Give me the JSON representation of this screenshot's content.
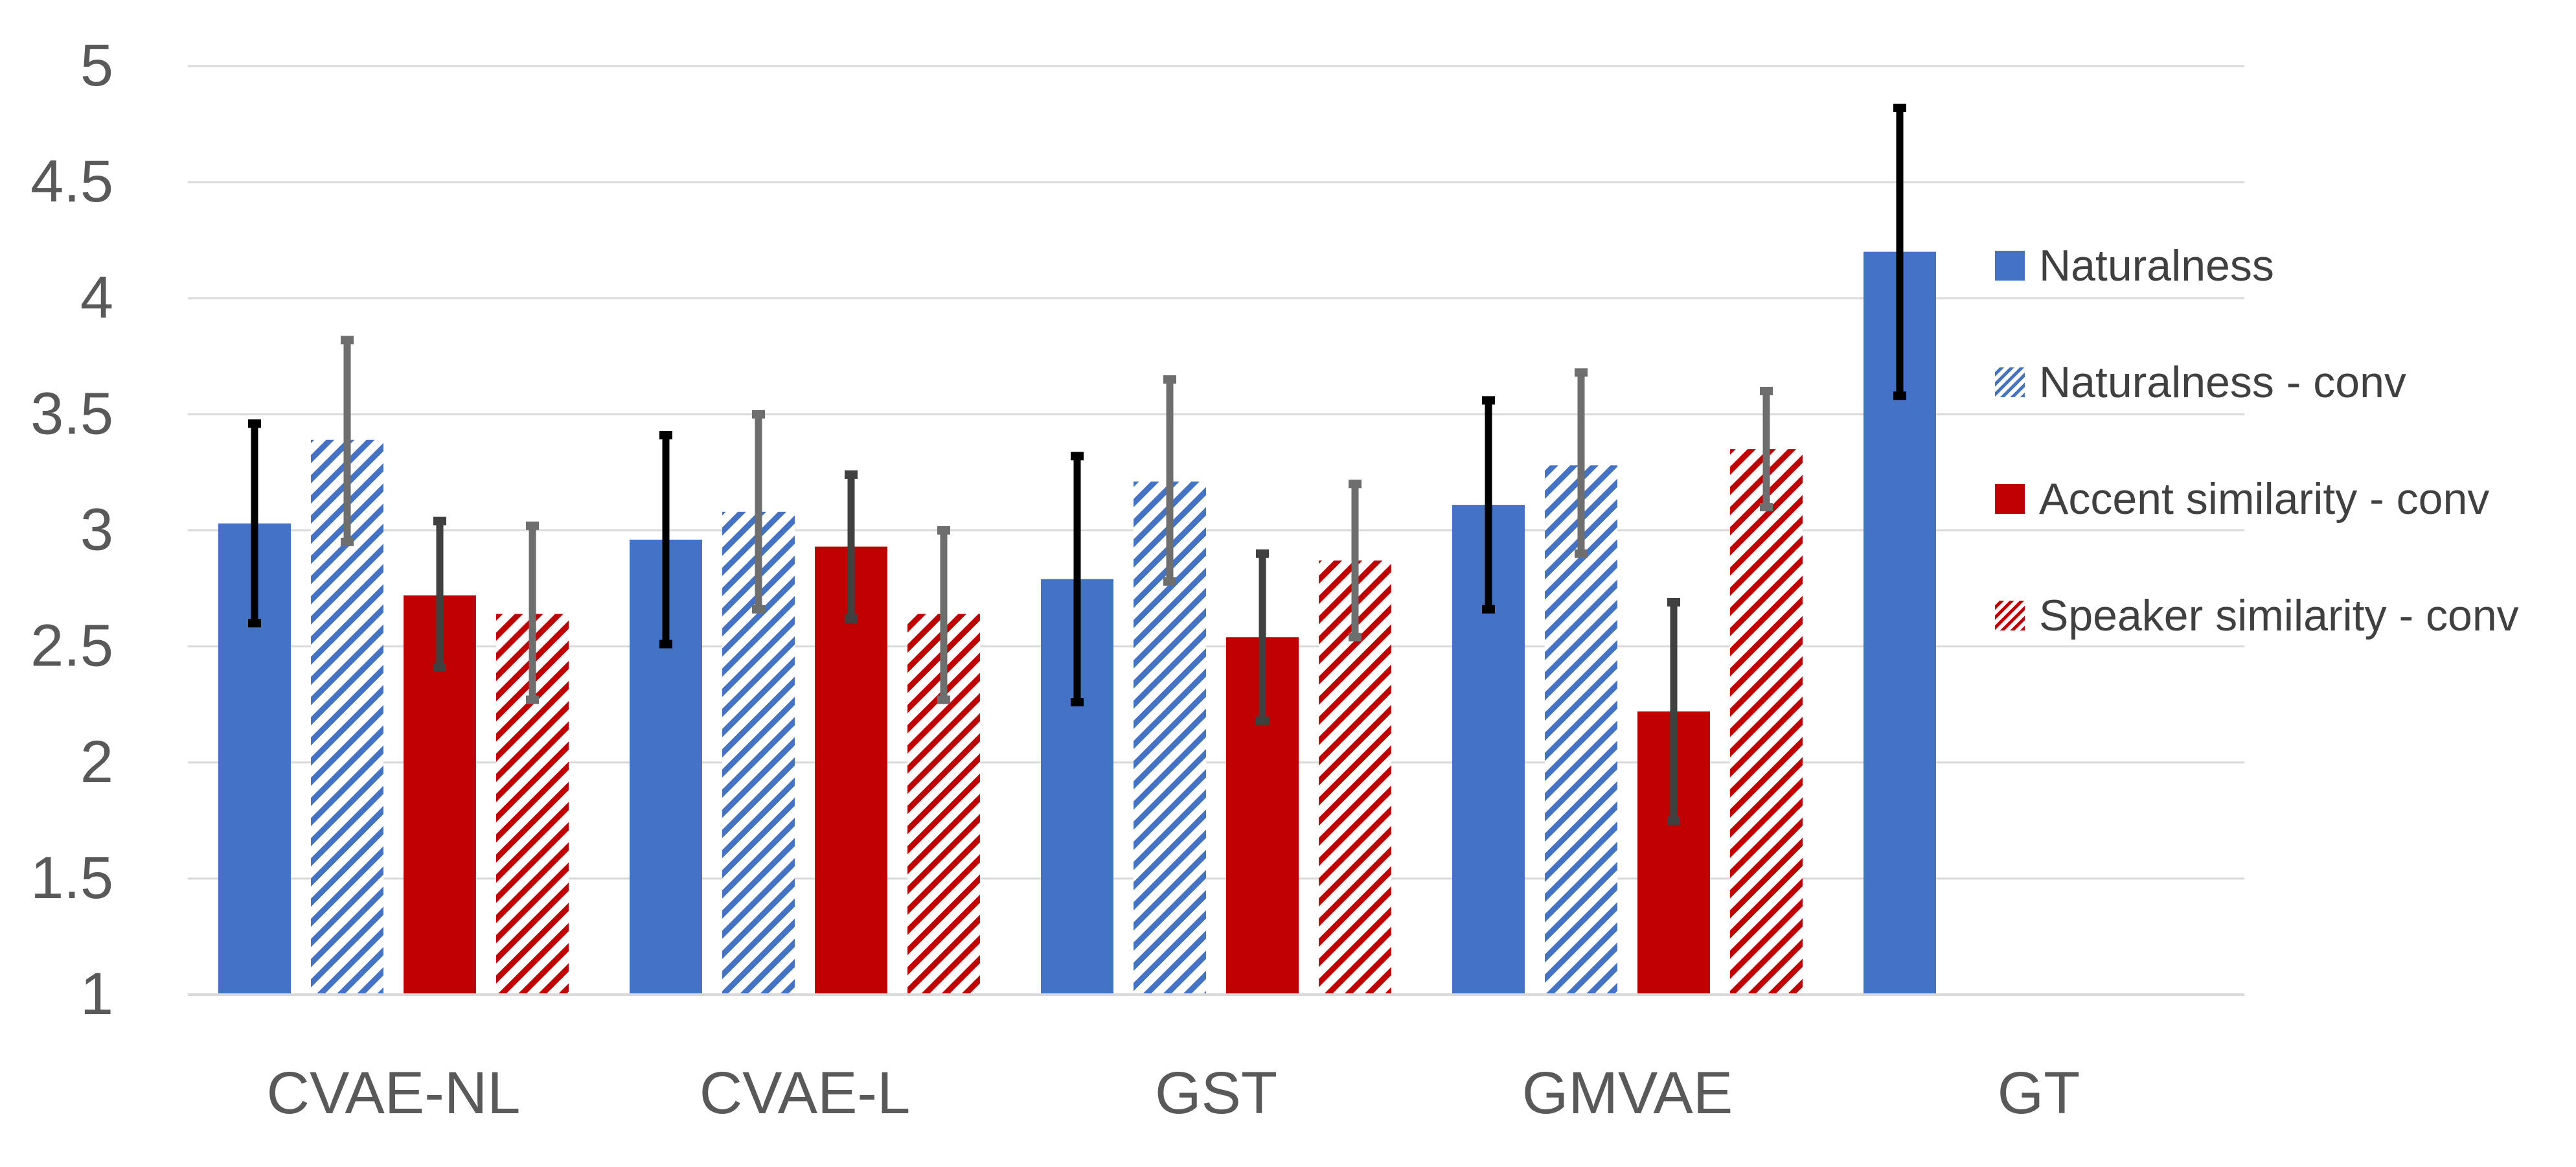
{
  "chart_data": {
    "type": "bar",
    "title": "",
    "xlabel": "",
    "ylabel": "",
    "ylim": [
      1,
      5
    ],
    "yticks": [
      "1",
      "1.5",
      "2",
      "2.5",
      "3",
      "3.5",
      "4",
      "4.5",
      "5"
    ],
    "grid": true,
    "legend_position": "right",
    "categories": [
      "CVAE-NL",
      "CVAE-L",
      "GST",
      "GMVAE",
      "GT"
    ],
    "series": [
      {
        "name": "Naturalness",
        "pattern": "solid",
        "color": "#4472C4",
        "errorbar_color": "#000000",
        "values": [
          3.03,
          2.96,
          2.79,
          3.11,
          4.2
        ],
        "error_low": [
          2.6,
          2.51,
          2.26,
          2.66,
          3.58
        ],
        "error_high": [
          3.46,
          3.41,
          3.32,
          3.56,
          4.82
        ]
      },
      {
        "name": "Naturalness - conv",
        "pattern": "hatch",
        "color": "#4472C4",
        "errorbar_color": "#6E6E6E",
        "values": [
          3.39,
          3.08,
          3.21,
          3.28,
          null
        ],
        "error_low": [
          2.95,
          2.66,
          2.78,
          2.9,
          null
        ],
        "error_high": [
          3.82,
          3.5,
          3.65,
          3.68,
          null
        ]
      },
      {
        "name": "Accent similarity - conv",
        "pattern": "solid",
        "color": "#C00000",
        "errorbar_color": "#404040",
        "values": [
          2.72,
          2.93,
          2.54,
          2.22,
          null
        ],
        "error_low": [
          2.41,
          2.62,
          2.18,
          1.75,
          null
        ],
        "error_high": [
          3.04,
          3.24,
          2.9,
          2.69,
          null
        ]
      },
      {
        "name": "Speaker similarity - conv",
        "pattern": "hatch",
        "color": "#C00000",
        "errorbar_color": "#6E6E6E",
        "values": [
          2.64,
          2.64,
          2.87,
          3.35,
          null
        ],
        "error_low": [
          2.27,
          2.27,
          2.54,
          3.1,
          null
        ],
        "error_high": [
          3.02,
          3.0,
          3.2,
          3.6,
          null
        ]
      }
    ]
  }
}
